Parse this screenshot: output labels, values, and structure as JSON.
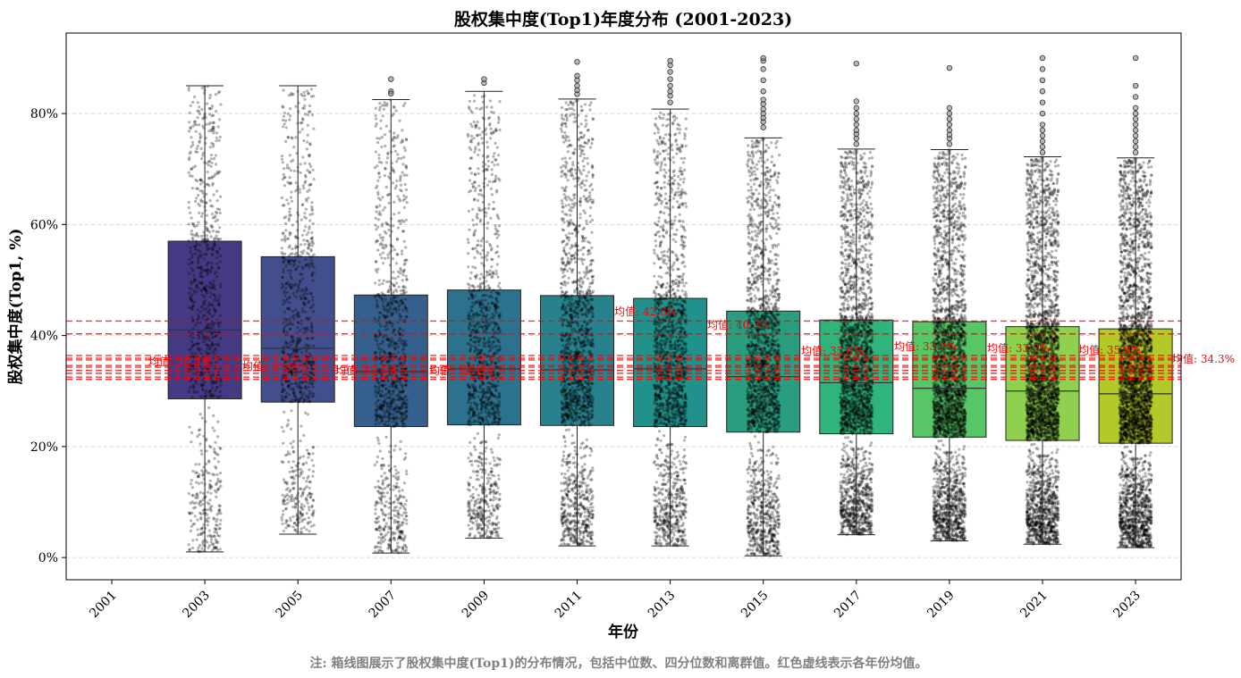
{
  "chart_data": {
    "type": "box",
    "title": "股权集中度(Top1)年度分布 (2001-2023)",
    "xlabel": "年份",
    "ylabel": "股权集中度(Top1, %)",
    "note": "注: 箱线图展示了股权集中度(Top1)的分布情况，包括中位数、四分位数和离群值。红色虚线表示各年份均值。",
    "x_ticks": [
      "2001",
      "2003",
      "2005",
      "2007",
      "2009",
      "2011",
      "2013",
      "2015",
      "2017",
      "2019",
      "2021",
      "2023"
    ],
    "y_ticks": [
      "0%",
      "20%",
      "40%",
      "60%",
      "80%"
    ],
    "y_tick_values": [
      0,
      20,
      40,
      60,
      80
    ],
    "ylim": [
      -4,
      94.5
    ],
    "grid": "y-dashed",
    "boxes": [
      {
        "year": "2003",
        "q1": 28.6,
        "median": 41.0,
        "q3": 57.0,
        "whisker_low": 1.0,
        "whisker_high": 85.0,
        "color": "#443a83",
        "n_points": 900,
        "outliers": []
      },
      {
        "year": "2005",
        "q1": 28.0,
        "median": 37.7,
        "q3": 54.2,
        "whisker_low": 4.2,
        "whisker_high": 85.0,
        "color": "#424f8c",
        "n_points": 900,
        "outliers": []
      },
      {
        "year": "2007",
        "q1": 23.6,
        "median": 33.5,
        "q3": 47.3,
        "whisker_low": 0.8,
        "whisker_high": 82.5,
        "color": "#35608d",
        "n_points": 1100,
        "outliers": [
          84.0,
          86.2,
          83.6
        ]
      },
      {
        "year": "2009",
        "q1": 23.9,
        "median": 34.0,
        "q3": 48.2,
        "whisker_low": 3.5,
        "whisker_high": 84.0,
        "color": "#2c728e",
        "n_points": 1200,
        "outliers": [
          85.5,
          86.2
        ]
      },
      {
        "year": "2011",
        "q1": 23.8,
        "median": 33.8,
        "q3": 47.2,
        "whisker_low": 2.1,
        "whisker_high": 82.6,
        "color": "#27828e",
        "n_points": 1700,
        "outliers": [
          83.5,
          84.2,
          85.0,
          86.0,
          86.8,
          89.3
        ]
      },
      {
        "year": "2013",
        "q1": 23.6,
        "median": 34.0,
        "q3": 46.7,
        "whisker_low": 2.1,
        "whisker_high": 80.8,
        "color": "#21918c",
        "n_points": 1700,
        "outliers": [
          82.0,
          83.2,
          84.0,
          85.0,
          86.2,
          87.5,
          88.7,
          89.5
        ]
      },
      {
        "year": "2015",
        "q1": 22.6,
        "median": 32.6,
        "q3": 44.4,
        "whisker_low": 0.3,
        "whisker_high": 75.6,
        "color": "#2a9d80",
        "n_points": 2000,
        "outliers": [
          77.5,
          78.5,
          79.2,
          80.0,
          80.8,
          81.7,
          82.5,
          84.0,
          86.0,
          88.0,
          89.5,
          90.0
        ]
      },
      {
        "year": "2017",
        "q1": 22.3,
        "median": 31.5,
        "q3": 42.8,
        "whisker_low": 4.1,
        "whisker_high": 73.6,
        "color": "#2fb47c",
        "n_points": 2500,
        "outliers": [
          74.5,
          75.5,
          76.3,
          77.0,
          78.0,
          79.0,
          80.0,
          81.0,
          82.2,
          89.0
        ]
      },
      {
        "year": "2019",
        "q1": 21.7,
        "median": 30.5,
        "q3": 42.5,
        "whisker_low": 3.0,
        "whisker_high": 73.5,
        "color": "#56c667",
        "n_points": 2900,
        "outliers": [
          74.5,
          75.5,
          76.2,
          77.0,
          78.0,
          79.0,
          80.0,
          81.0,
          88.2
        ]
      },
      {
        "year": "2021",
        "q1": 21.1,
        "median": 30.0,
        "q3": 41.6,
        "whisker_low": 2.4,
        "whisker_high": 72.2,
        "color": "#8fd14f",
        "n_points": 3300,
        "outliers": [
          73.0,
          74.0,
          75.0,
          76.0,
          77.0,
          78.0,
          80.0,
          82.0,
          84.0,
          86.0,
          88.0,
          90.0
        ]
      },
      {
        "year": "2023",
        "q1": 20.6,
        "median": 29.5,
        "q3": 41.2,
        "whisker_low": 1.8,
        "whisker_high": 72.0,
        "color": "#b3c92a",
        "n_points": 3500,
        "outliers": [
          73.0,
          74.0,
          75.0,
          76.0,
          77.0,
          78.0,
          79.0,
          80.0,
          81.0,
          83.0,
          85.0,
          90.0
        ]
      }
    ],
    "mean_lines": [
      {
        "value": 42.6,
        "label": "均值: 42.6%",
        "label_at": "2013"
      },
      {
        "value": 40.3,
        "label": "均值: 40.3%",
        "label_at": "2015"
      },
      {
        "value": 36.4,
        "label": "均值: 36.4%",
        "label_at": "2003"
      },
      {
        "value": 35.9,
        "label": "均值: 35.9%",
        "label_at": "2023"
      },
      {
        "value": 35.6,
        "label": "均值: 35.6%",
        "label_at": "2017"
      },
      {
        "value": 34.6,
        "label": "均值: 34.6%",
        "label_at": "2005"
      },
      {
        "value": 34.3,
        "label": "均值: 34.3%",
        "label_at": "2023b"
      },
      {
        "value": 33.7,
        "label": "均值: 33.7%",
        "label_at": "2021"
      },
      {
        "value": 33.2,
        "label": "均值: 33.2%",
        "label_at": "2019"
      },
      {
        "value": 32.5,
        "label": "均值: 32.5%",
        "label_at": "2007"
      },
      {
        "value": 32.1,
        "label": "均值: 32.1%",
        "label_at": "2009"
      }
    ]
  }
}
